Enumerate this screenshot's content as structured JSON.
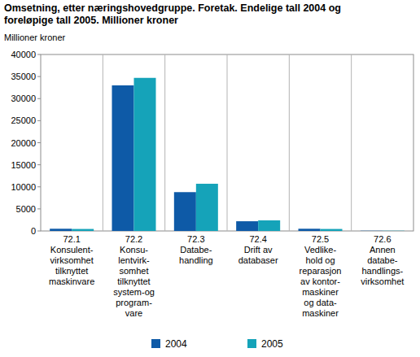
{
  "chart_data": {
    "type": "bar",
    "title": "Omsetning, etter næringshovedgruppe. Foretak. Endelige tall 2004 og\nforeløpige tall 2005. Millioner kroner",
    "y_label": "Millioner kroner",
    "categories": [
      "72.1\nKonsulent-\nvirksomhet\ntilknyttet\nmaskinvare",
      "72.2\nKonsu-\nlentvirk-\nsomhet\ntilknyttet\nsystem-og\nprogram-\nvare",
      "72.3\nDatabe-\nhandling",
      "72.4\nDrift av\ndatabaser",
      "72.5\nVedlike-\nhold og\nreparasjon\nav kontor-\nmaskiner\nog data-\nmaskiner",
      "72.6\nAnnen\ndatabe-\nhandlings-\nvirksomhet"
    ],
    "series": [
      {
        "name": "2004",
        "color": "#0e5aa7",
        "values": [
          500,
          33000,
          8800,
          2200,
          500,
          50
        ]
      },
      {
        "name": "2005",
        "color": "#15a3b9",
        "values": [
          450,
          34700,
          10700,
          2400,
          450,
          50
        ]
      }
    ],
    "ylim": [
      0,
      40000
    ],
    "yticks": [
      0,
      5000,
      10000,
      15000,
      20000,
      25000,
      30000,
      35000,
      40000
    ],
    "grid": false,
    "legend": "bottom"
  }
}
